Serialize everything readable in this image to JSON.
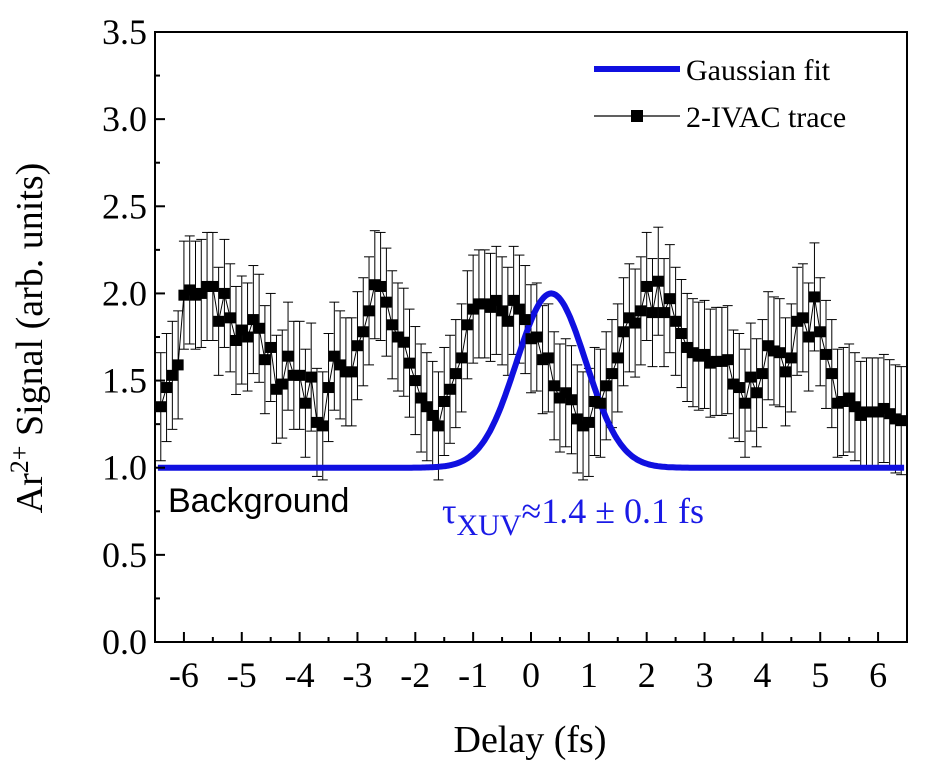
{
  "chart_data": {
    "type": "scatter",
    "title": "",
    "xlabel": "Delay (fs)",
    "ylabel_main": "Ar",
    "ylabel_sup": "2+",
    "ylabel_rest": " Signal (arb. units)",
    "xlim": [
      -6.5,
      6.5
    ],
    "ylim": [
      0.0,
      3.5
    ],
    "x_ticks": [
      -6,
      -5,
      -4,
      -3,
      -2,
      -1,
      0,
      1,
      2,
      3,
      4,
      5,
      6
    ],
    "x_tick_labels": [
      "-6",
      "-5",
      "-4",
      "-3",
      "-2",
      "-1",
      "0",
      "1",
      "2",
      "3",
      "4",
      "5",
      "6"
    ],
    "y_ticks": [
      0.0,
      0.5,
      1.0,
      1.5,
      2.0,
      2.5,
      3.0,
      3.5
    ],
    "y_tick_labels": [
      "0.0",
      "0.5",
      "1.0",
      "1.5",
      "2.0",
      "2.5",
      "3.0",
      "3.5"
    ],
    "legend": {
      "position": "top-right",
      "entries": [
        "Gaussian fit",
        "2-IVAC trace"
      ]
    },
    "annotations": {
      "background_label": "Background",
      "tau_symbol": "τ",
      "tau_subscript": "XUV",
      "tau_value": "≈1.4 ± 0.1 fs"
    },
    "colors": {
      "fit": "#1010e0",
      "trace": "#000000",
      "annotation_blue": "#1a1ae6"
    },
    "series": [
      {
        "name": "Gaussian fit",
        "kind": "curve",
        "baseline": 1.0,
        "amplitude": 1.0,
        "center": 0.35,
        "sigma": 0.6,
        "x_start": -6.45,
        "x_end": 6.45
      },
      {
        "name": "2-IVAC trace",
        "kind": "points",
        "x": [
          -6.4,
          -6.3,
          -6.2,
          -6.1,
          -6.0,
          -5.9,
          -5.8,
          -5.7,
          -5.6,
          -5.5,
          -5.4,
          -5.3,
          -5.2,
          -5.1,
          -5.0,
          -4.9,
          -4.8,
          -4.7,
          -4.6,
          -4.5,
          -4.4,
          -4.3,
          -4.2,
          -4.1,
          -4.0,
          -3.9,
          -3.8,
          -3.7,
          -3.6,
          -3.5,
          -3.4,
          -3.3,
          -3.2,
          -3.1,
          -3.0,
          -2.9,
          -2.8,
          -2.7,
          -2.6,
          -2.5,
          -2.4,
          -2.3,
          -2.2,
          -2.1,
          -2.0,
          -1.9,
          -1.8,
          -1.7,
          -1.6,
          -1.5,
          -1.4,
          -1.3,
          -1.2,
          -1.1,
          -1.0,
          -0.9,
          -0.8,
          -0.7,
          -0.6,
          -0.5,
          -0.4,
          -0.3,
          -0.2,
          -0.1,
          0.0,
          0.1,
          0.2,
          0.3,
          0.4,
          0.5,
          0.6,
          0.7,
          0.8,
          0.9,
          1.0,
          1.1,
          1.2,
          1.3,
          1.4,
          1.5,
          1.6,
          1.7,
          1.8,
          1.9,
          2.0,
          2.1,
          2.2,
          2.3,
          2.4,
          2.5,
          2.6,
          2.7,
          2.8,
          2.9,
          3.0,
          3.1,
          3.2,
          3.3,
          3.4,
          3.5,
          3.6,
          3.7,
          3.8,
          3.9,
          4.0,
          4.1,
          4.2,
          4.3,
          4.4,
          4.5,
          4.6,
          4.7,
          4.8,
          4.9,
          5.0,
          5.1,
          5.2,
          5.3,
          5.4,
          5.5,
          5.6,
          5.7,
          5.8,
          5.9,
          6.0,
          6.1,
          6.2,
          6.3,
          6.4
        ],
        "y": [
          1.35,
          1.46,
          1.53,
          1.59,
          1.99,
          2.02,
          1.99,
          2.0,
          2.04,
          2.04,
          1.84,
          2.0,
          1.86,
          1.73,
          1.79,
          1.75,
          1.85,
          1.8,
          1.62,
          1.69,
          1.45,
          1.48,
          1.64,
          1.53,
          1.53,
          1.37,
          1.52,
          1.26,
          1.24,
          1.46,
          1.64,
          1.59,
          1.55,
          1.55,
          1.7,
          1.78,
          1.9,
          2.05,
          2.04,
          1.95,
          1.82,
          1.75,
          1.72,
          1.6,
          1.5,
          1.4,
          1.35,
          1.3,
          1.24,
          1.38,
          1.45,
          1.54,
          1.63,
          1.82,
          1.91,
          1.94,
          1.94,
          1.92,
          1.96,
          1.9,
          1.84,
          1.96,
          1.91,
          1.85,
          1.74,
          1.75,
          1.62,
          1.63,
          1.47,
          1.4,
          1.43,
          1.39,
          1.28,
          1.24,
          1.26,
          1.38,
          1.37,
          1.47,
          1.54,
          1.63,
          1.78,
          1.86,
          1.83,
          1.9,
          2.04,
          1.89,
          2.07,
          1.89,
          1.97,
          1.84,
          1.77,
          1.69,
          1.66,
          1.64,
          1.65,
          1.6,
          1.61,
          1.61,
          1.62,
          1.48,
          1.46,
          1.37,
          1.52,
          1.43,
          1.54,
          1.7,
          1.67,
          1.66,
          1.55,
          1.63,
          1.84,
          1.86,
          1.75,
          1.98,
          1.78,
          1.65,
          1.54,
          1.37,
          1.38,
          1.4,
          1.35,
          1.3,
          1.32,
          1.32,
          1.32,
          1.34,
          1.31,
          1.28,
          1.27
        ],
        "error": 0.31
      }
    ]
  }
}
